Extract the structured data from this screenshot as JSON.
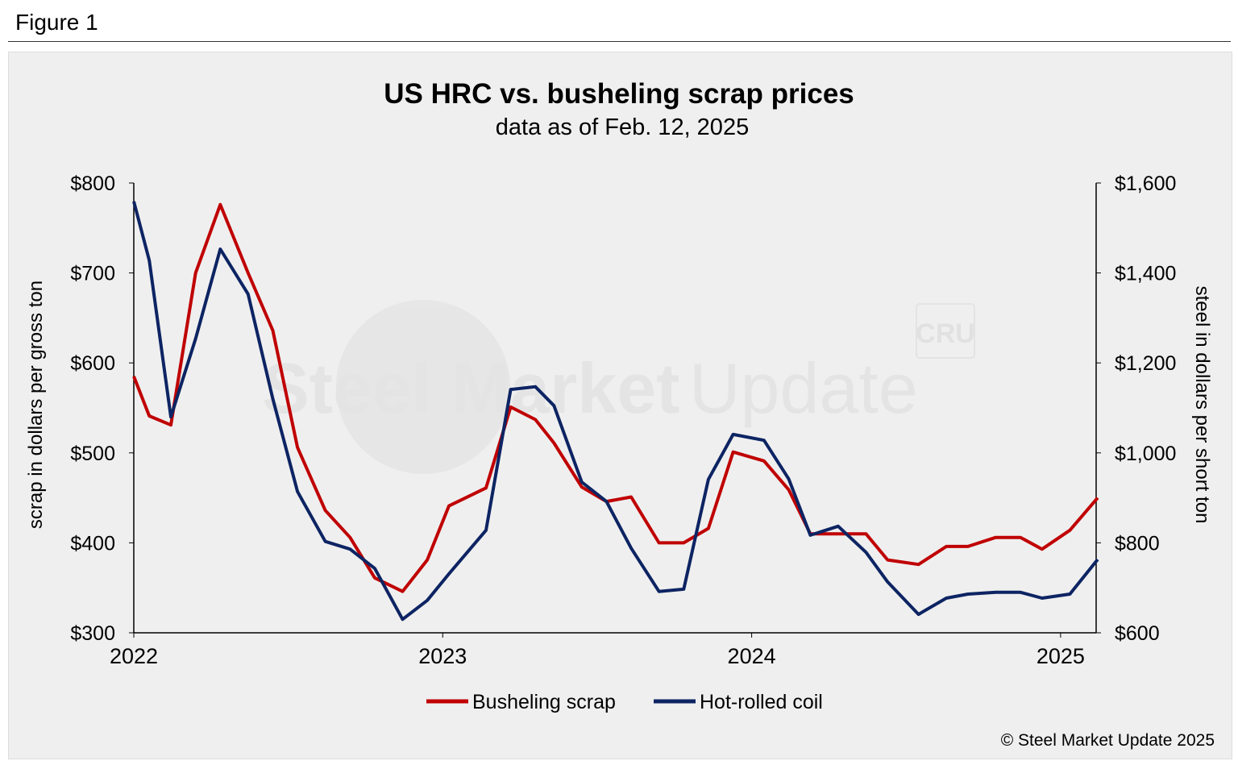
{
  "figure_label": "Figure 1",
  "copyright": "© Steel Market Update 2025",
  "watermark": {
    "text_bold": "Steel Market",
    "text_light": "Update",
    "logo": "CRU"
  },
  "colors": {
    "scrap": "#c00000",
    "hrc": "#0d2463",
    "background": "#efefef"
  },
  "chart_data": {
    "type": "line",
    "title": "US HRC vs. busheling scrap prices",
    "subtitle": "data as of Feb. 12, 2025",
    "ylabel": "scrap in dollars per gross ton",
    "y2label": "steel in dollars per short ton",
    "xlim": [
      2022,
      2025.12
    ],
    "ylim": [
      300,
      800
    ],
    "y2lim": [
      600,
      1600
    ],
    "xticks": [
      "2022",
      "2023",
      "2024",
      "2025"
    ],
    "yticks": [
      "$300",
      "$400",
      "$500",
      "$600",
      "$700",
      "$800"
    ],
    "y2ticks": [
      "$600",
      "$800",
      "$1,000",
      "$1,200",
      "$1,400",
      "$1,600"
    ],
    "grid": false,
    "legend": "bottom",
    "x": [
      2022.0,
      2022.05,
      2022.12,
      2022.2,
      2022.28,
      2022.37,
      2022.45,
      2022.53,
      2022.62,
      2022.7,
      2022.78,
      2022.87,
      2022.95,
      2023.02,
      2023.14,
      2023.22,
      2023.3,
      2023.36,
      2023.45,
      2023.53,
      2023.61,
      2023.7,
      2023.78,
      2023.86,
      2023.94,
      2024.04,
      2024.12,
      2024.19,
      2024.28,
      2024.37,
      2024.44,
      2024.54,
      2024.63,
      2024.7,
      2024.79,
      2024.87,
      2024.94,
      2025.03,
      2025.12
    ],
    "series": [
      {
        "name": "Busheling scrap",
        "axis": "left",
        "values": [
          585,
          541,
          531,
          700,
          776,
          700,
          636,
          506,
          436,
          406,
          361,
          346,
          381,
          441,
          461,
          551,
          537,
          511,
          462,
          446,
          451,
          400,
          400,
          416,
          501,
          491,
          459,
          410,
          410,
          410,
          381,
          376,
          396,
          396,
          406,
          406,
          393,
          414,
          450
        ]
      },
      {
        "name": "Hot-rolled coil",
        "axis": "right",
        "values": [
          1559,
          1428,
          1080,
          1254,
          1453,
          1353,
          1120,
          914,
          803,
          786,
          743,
          630,
          672,
          731,
          828,
          1141,
          1147,
          1105,
          935,
          892,
          788,
          692,
          697,
          941,
          1041,
          1028,
          942,
          817,
          837,
          779,
          713,
          641,
          677,
          686,
          690,
          690,
          677,
          686,
          763
        ]
      }
    ]
  }
}
